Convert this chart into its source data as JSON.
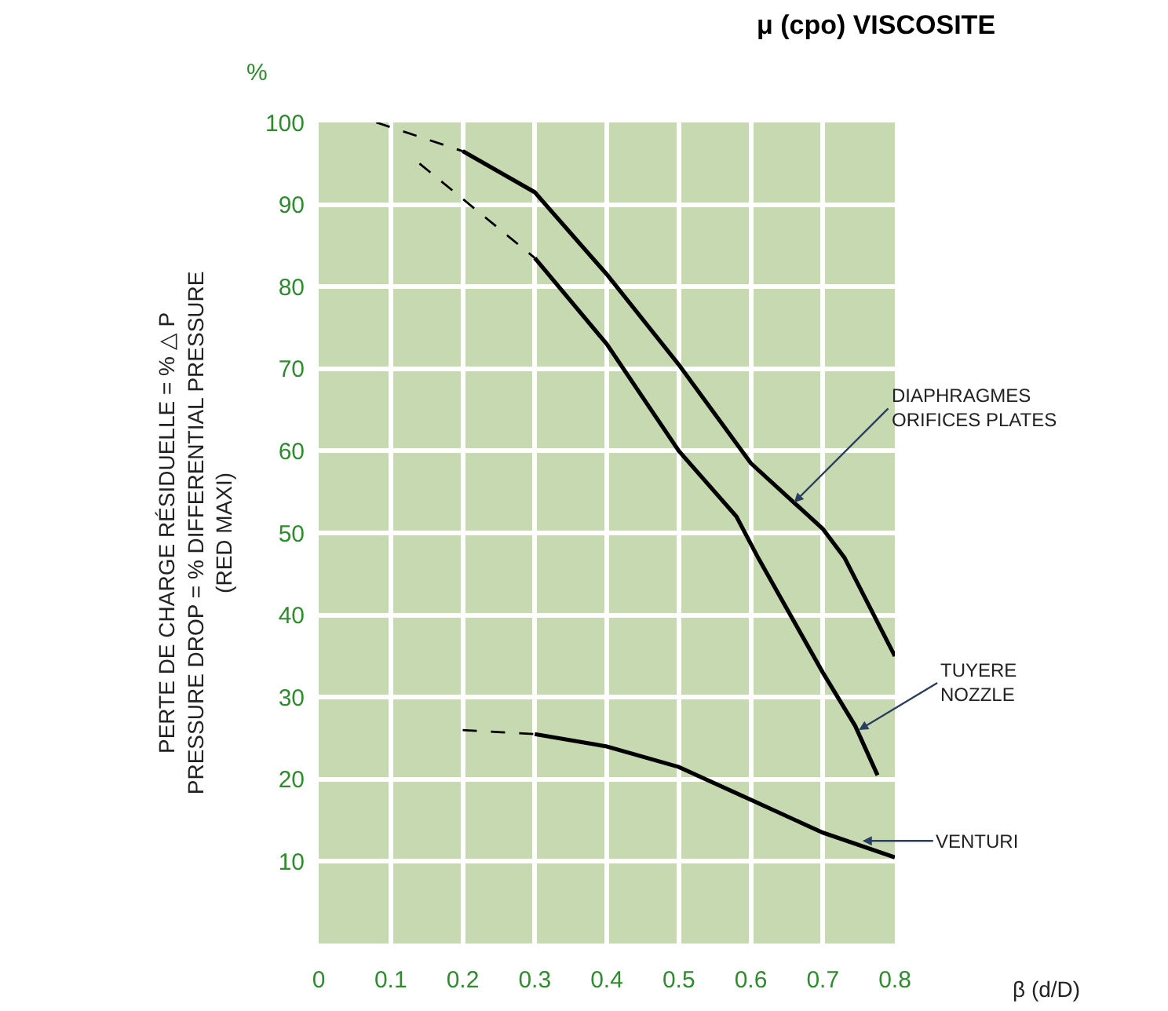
{
  "chart_data": {
    "type": "line",
    "title": "μ (cpo) VISCOSITE",
    "xlabel": "β (d/D)",
    "ylabel": "PERTE DE CHARGE RÉSIDUELLE = % △ P\nPRESSURE DROP = % DIFFERENTIAL PRESSURE\n(RED MAXI)",
    "xlim": [
      0,
      0.8
    ],
    "ylim": [
      0,
      100
    ],
    "xticks": [
      0,
      0.1,
      0.2,
      0.3,
      0.4,
      0.5,
      0.6,
      0.7,
      0.8
    ],
    "yticks": [
      {
        "value": 0,
        "label": null
      },
      10,
      20,
      30,
      40,
      50,
      60,
      70,
      80,
      90,
      100
    ],
    "grid": true,
    "marker": "none",
    "series": [
      {
        "color": "#000000",
        "line_style": "dashed",
        "x": [
          0.08,
          0.2
        ],
        "values": [
          100,
          96.5
        ]
      },
      {
        "color": "#000000",
        "line_style": "solid",
        "x": [
          0.2,
          0.3,
          0.4,
          0.5,
          0.6,
          0.7,
          0.73,
          0.8
        ],
        "values": [
          96.5,
          91.5,
          81.5,
          70.5,
          58.5,
          50.5,
          47,
          35
        ]
      },
      {
        "color": "#000000",
        "line_style": "dashed",
        "x": [
          0.14,
          0.3
        ],
        "values": [
          95,
          83.5
        ]
      },
      {
        "color": "#000000",
        "line_style": "solid",
        "x": [
          0.3,
          0.4,
          0.5,
          0.58,
          0.61,
          0.7,
          0.745,
          0.776
        ],
        "values": [
          83.5,
          73,
          60,
          52,
          47,
          33,
          26.5,
          20.5
        ]
      },
      {
        "color": "#000000",
        "line_style": "dashed",
        "x": [
          0.2,
          0.3
        ],
        "values": [
          26,
          25.5
        ]
      },
      {
        "color": "#000000",
        "line_style": "solid",
        "x": [
          0.3,
          0.4,
          0.5,
          0.6,
          0.7,
          0.8
        ],
        "values": [
          25.5,
          24,
          21.5,
          17.5,
          13.5,
          10.5
        ]
      }
    ],
    "annotations": [
      {
        "text": "DIAPHRAGMES\nORIFICES PLATES",
        "x": 0.66,
        "y": 53.7
      },
      {
        "text": "TUYERE\nNOZZLE",
        "x": 0.75,
        "y": 26
      },
      {
        "text": "VENTURI",
        "x": 0.755,
        "y": 12.5
      },
      "%"
    ]
  }
}
